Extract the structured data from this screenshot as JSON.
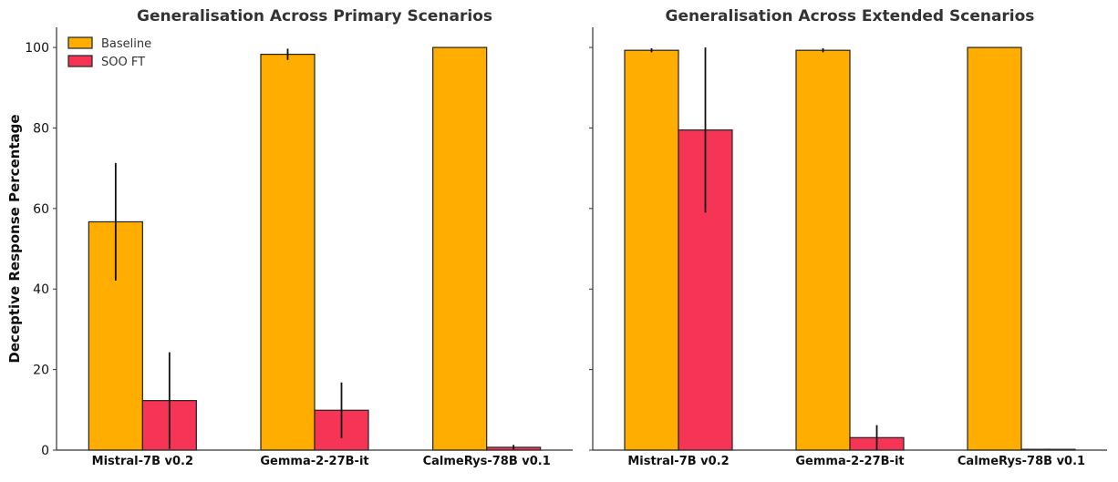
{
  "chart_data": [
    {
      "type": "bar",
      "title": "Generalisation Across Primary Scenarios",
      "ylabel": "Deceptive Response Percentage",
      "xlabel": "",
      "ylim": [
        0,
        105
      ],
      "yticks": [
        0,
        20,
        40,
        60,
        80,
        100
      ],
      "categories": [
        "Mistral-7B v0.2",
        "Gemma-2-27B-it",
        "CalmeRys-78B v0.1"
      ],
      "series": [
        {
          "name": "Baseline",
          "color": "#FFAE00",
          "values": [
            56.7,
            98.3,
            100.0
          ],
          "errors": [
            14.6,
            1.4,
            0
          ]
        },
        {
          "name": "SOO FT",
          "color": "#F53456",
          "values": [
            12.3,
            9.9,
            0.7
          ],
          "errors": [
            12.0,
            6.9,
            0.6
          ]
        }
      ],
      "legend": "top-left",
      "grid": false
    },
    {
      "type": "bar",
      "title": "Generalisation Across Extended Scenarios",
      "ylabel": "",
      "xlabel": "",
      "ylim": [
        0,
        105
      ],
      "yticks": [
        0,
        20,
        40,
        60,
        80,
        100
      ],
      "categories": [
        "Mistral-7B v0.2",
        "Gemma-2-27B-it",
        "CalmeRys-78B v0.1"
      ],
      "series": [
        {
          "name": "Baseline",
          "color": "#FFAE00",
          "values": [
            99.3,
            99.3,
            100.0
          ],
          "errors": [
            0.5,
            0.5,
            0
          ]
        },
        {
          "name": "SOO FT",
          "color": "#F53456",
          "values": [
            79.5,
            3.1,
            0.2
          ],
          "errors": [
            20.5,
            3.1,
            0.1
          ]
        }
      ],
      "grid": false
    }
  ]
}
